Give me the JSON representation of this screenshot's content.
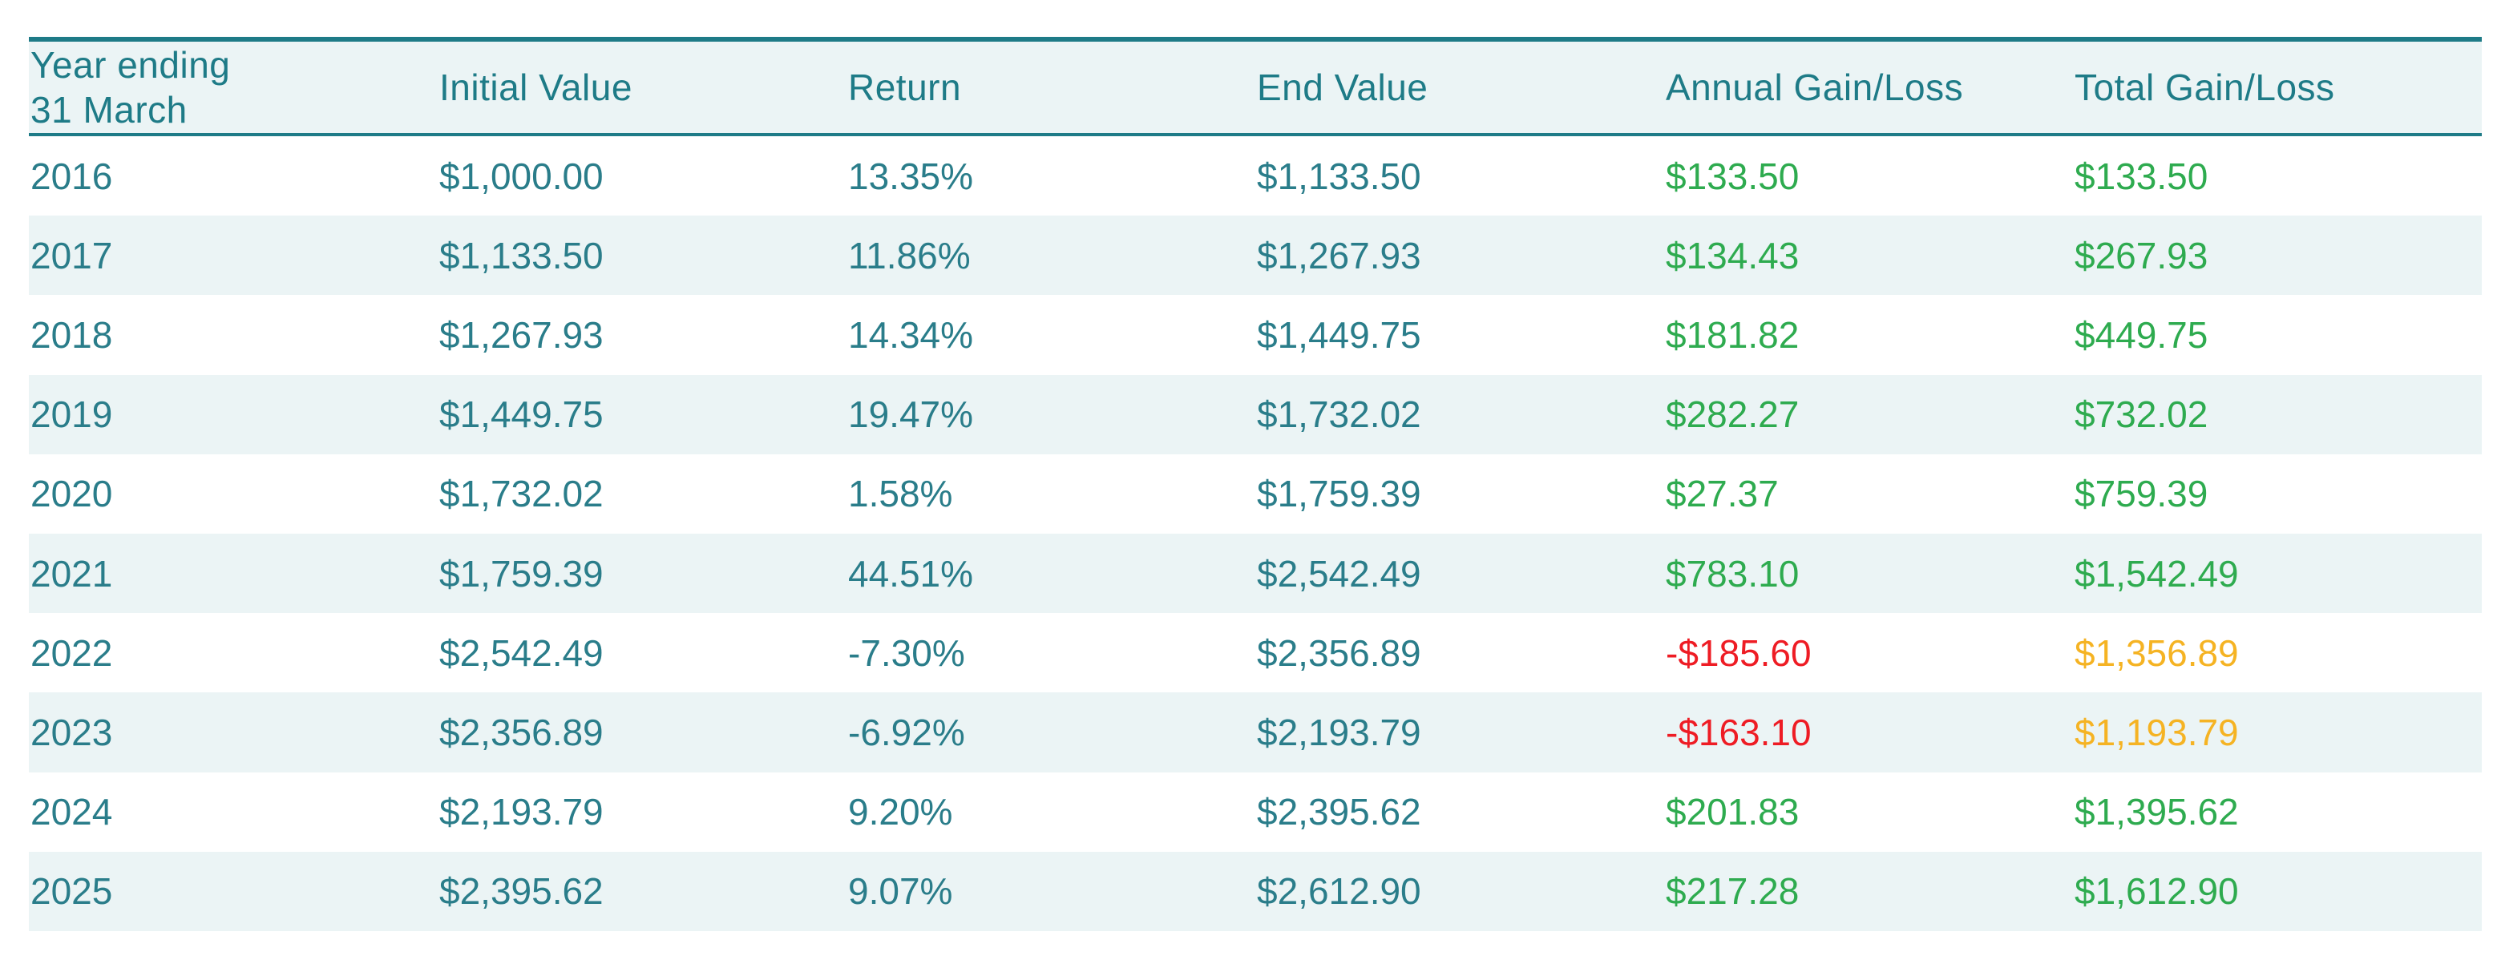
{
  "chart_data": {
    "type": "table",
    "colors": {
      "header_text": "#1e7b87",
      "rule": "#1e7b87",
      "stripe": "#ebf4f5",
      "body_text": "#2a7d8a",
      "positive": "#2eab4f",
      "negative": "#ee1c24",
      "warning": "#f5b323"
    },
    "columns": [
      "Year ending\n31 March",
      "Initial Value",
      "Return",
      "End Value",
      "Annual Gain/Loss",
      "Total Gain/Loss"
    ],
    "rows": [
      {
        "year": "2016",
        "initial": "$1,000.00",
        "return": "13.35%",
        "end": "$1,133.50",
        "annual": "$133.50",
        "annual_status": "positive",
        "total": "$133.50",
        "total_status": "positive"
      },
      {
        "year": "2017",
        "initial": "$1,133.50",
        "return": "11.86%",
        "end": "$1,267.93",
        "annual": "$134.43",
        "annual_status": "positive",
        "total": "$267.93",
        "total_status": "positive"
      },
      {
        "year": "2018",
        "initial": "$1,267.93",
        "return": "14.34%",
        "end": "$1,449.75",
        "annual": "$181.82",
        "annual_status": "positive",
        "total": "$449.75",
        "total_status": "positive"
      },
      {
        "year": "2019",
        "initial": "$1,449.75",
        "return": "19.47%",
        "end": "$1,732.02",
        "annual": "$282.27",
        "annual_status": "positive",
        "total": "$732.02",
        "total_status": "positive"
      },
      {
        "year": "2020",
        "initial": "$1,732.02",
        "return": "1.58%",
        "end": "$1,759.39",
        "annual": "$27.37",
        "annual_status": "positive",
        "total": "$759.39",
        "total_status": "positive"
      },
      {
        "year": "2021",
        "initial": "$1,759.39",
        "return": "44.51%",
        "end": "$2,542.49",
        "annual": "$783.10",
        "annual_status": "positive",
        "total": "$1,542.49",
        "total_status": "positive"
      },
      {
        "year": "2022",
        "initial": "$2,542.49",
        "return": "-7.30%",
        "end": "$2,356.89",
        "annual": "-$185.60",
        "annual_status": "negative",
        "total": "$1,356.89",
        "total_status": "warning"
      },
      {
        "year": "2023",
        "initial": "$2,356.89",
        "return": "-6.92%",
        "end": "$2,193.79",
        "annual": "-$163.10",
        "annual_status": "negative",
        "total": "$1,193.79",
        "total_status": "warning"
      },
      {
        "year": "2024",
        "initial": "$2,193.79",
        "return": "9.20%",
        "end": "$2,395.62",
        "annual": "$201.83",
        "annual_status": "positive",
        "total": "$1,395.62",
        "total_status": "positive"
      },
      {
        "year": "2025",
        "initial": "$2,395.62",
        "return": "9.07%",
        "end": "$2,612.90",
        "annual": "$217.28",
        "annual_status": "positive",
        "total": "$1,612.90",
        "total_status": "positive"
      }
    ]
  }
}
